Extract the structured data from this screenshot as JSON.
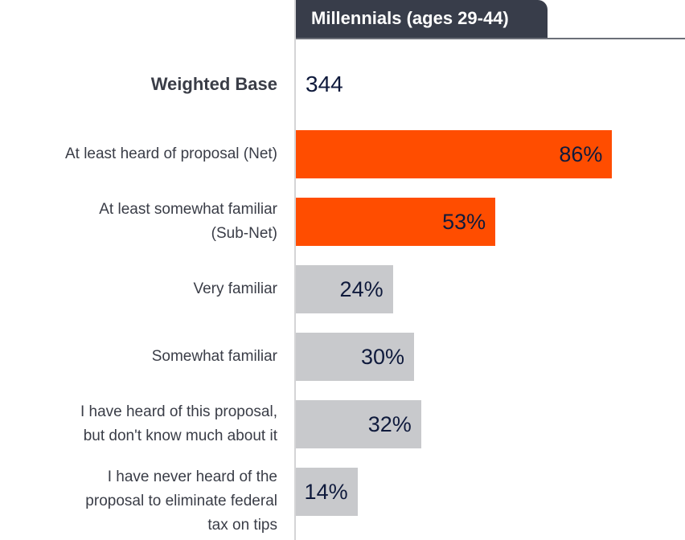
{
  "chart_data": {
    "type": "bar",
    "orientation": "horizontal",
    "series_name": "Millennials (ages 29-44)",
    "weighted_base_label": "Weighted Base",
    "weighted_base": "344",
    "categories": [
      "At least heard of proposal (Net)",
      "At least somewhat familiar (Sub-Net)",
      "Very familiar",
      "Somewhat familiar",
      "I have heard of this proposal, but don't know much about it",
      "I have never heard of the proposal to eliminate federal tax on tips"
    ],
    "values": [
      86,
      53,
      24,
      30,
      32,
      14
    ],
    "value_labels": [
      "86%",
      "53%",
      "24%",
      "30%",
      "32%",
      "14%"
    ],
    "colors": [
      "#ff4d00",
      "#ff4d00",
      "#c8c9cc",
      "#c8c9cc",
      "#c8c9cc",
      "#c8c9cc"
    ],
    "unit": "%"
  }
}
